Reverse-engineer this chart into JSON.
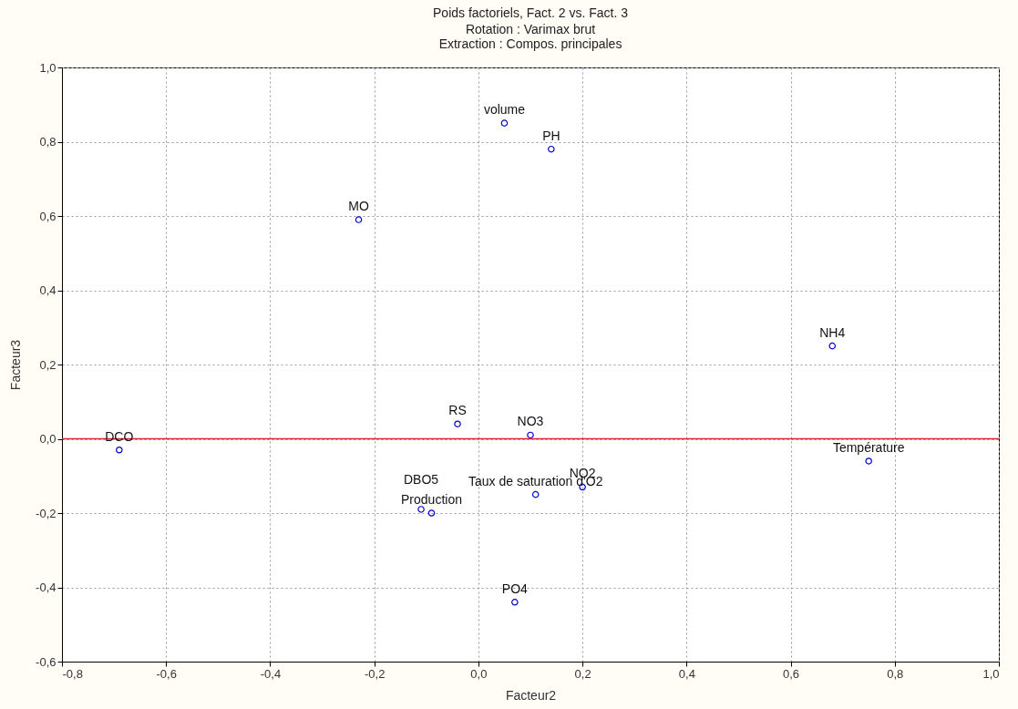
{
  "chart_data": {
    "type": "scatter",
    "title": "Poids factoriels, Fact. 2 vs. Fact. 3",
    "subtitle": "Rotation : Varimax brut\nExtraction : Compos. principales",
    "xlabel": "Facteur2",
    "ylabel": "Facteur3",
    "xlim": [
      -0.8,
      1.0
    ],
    "ylim": [
      -0.6,
      1.0
    ],
    "xticks": [
      {
        "value": -0.8,
        "label": "-0,8"
      },
      {
        "value": -0.6,
        "label": "-0,6"
      },
      {
        "value": -0.4,
        "label": "-0,4"
      },
      {
        "value": -0.2,
        "label": "-0,2"
      },
      {
        "value": 0,
        "label": "0,0"
      },
      {
        "value": 0.2,
        "label": "0,2"
      },
      {
        "value": 0.4,
        "label": "0,4"
      },
      {
        "value": 0.6,
        "label": "0,6"
      },
      {
        "value": 0.8,
        "label": "0,8"
      },
      {
        "value": 1.0,
        "label": "1,0"
      }
    ],
    "yticks": [
      {
        "value": -0.6,
        "label": "-0,6"
      },
      {
        "value": -0.4,
        "label": "-0,4"
      },
      {
        "value": -0.2,
        "label": "-0,2"
      },
      {
        "value": 0,
        "label": "0,0"
      },
      {
        "value": 0.2,
        "label": "0,2"
      },
      {
        "value": 0.4,
        "label": "0,4"
      },
      {
        "value": 0.6,
        "label": "0,6"
      },
      {
        "value": 0.8,
        "label": "0,8"
      },
      {
        "value": 1.0,
        "label": "1,0"
      }
    ],
    "grid": true,
    "marker": "circle",
    "series": [
      {
        "color": "#0000cc",
        "x": [
          0.05,
          0.14,
          -0.23,
          0.68,
          -0.69,
          -0.04,
          0.1,
          0.75,
          0.2,
          0.11,
          -0.09,
          -0.11,
          0.07
        ],
        "values": [
          0.85,
          0.78,
          0.59,
          0.25,
          -0.03,
          0.04,
          0.01,
          -0.06,
          -0.13,
          -0.15,
          -0.2,
          -0.19,
          -0.44
        ]
      }
    ],
    "annotations": [
      {
        "text": "volume",
        "x": 0.05,
        "y": 0.85
      },
      {
        "text": "PH",
        "x": 0.14,
        "y": 0.78
      },
      {
        "text": "MO",
        "x": -0.23,
        "y": 0.59
      },
      {
        "text": "NH4",
        "x": 0.68,
        "y": 0.25
      },
      {
        "text": "DCO",
        "x": -0.69,
        "y": -0.03
      },
      {
        "text": "RS",
        "x": -0.04,
        "y": 0.04
      },
      {
        "text": "NO3",
        "x": 0.1,
        "y": 0.01
      },
      {
        "text": "Température",
        "x": 0.75,
        "y": -0.06
      },
      {
        "text": "NO2",
        "x": 0.2,
        "y": -0.13
      },
      {
        "text": "Taux de saturation d'O2",
        "x": 0.11,
        "y": -0.15
      },
      {
        "text": "Production",
        "x": -0.09,
        "y": -0.2
      },
      {
        "text": "DBO5",
        "x": -0.11,
        "y": -0.19
      },
      {
        "text": "PO4",
        "x": 0.07,
        "y": -0.44
      }
    ],
    "ref_lines": [
      {
        "axis": "y",
        "value": 0,
        "color": "#dd2233"
      }
    ]
  }
}
